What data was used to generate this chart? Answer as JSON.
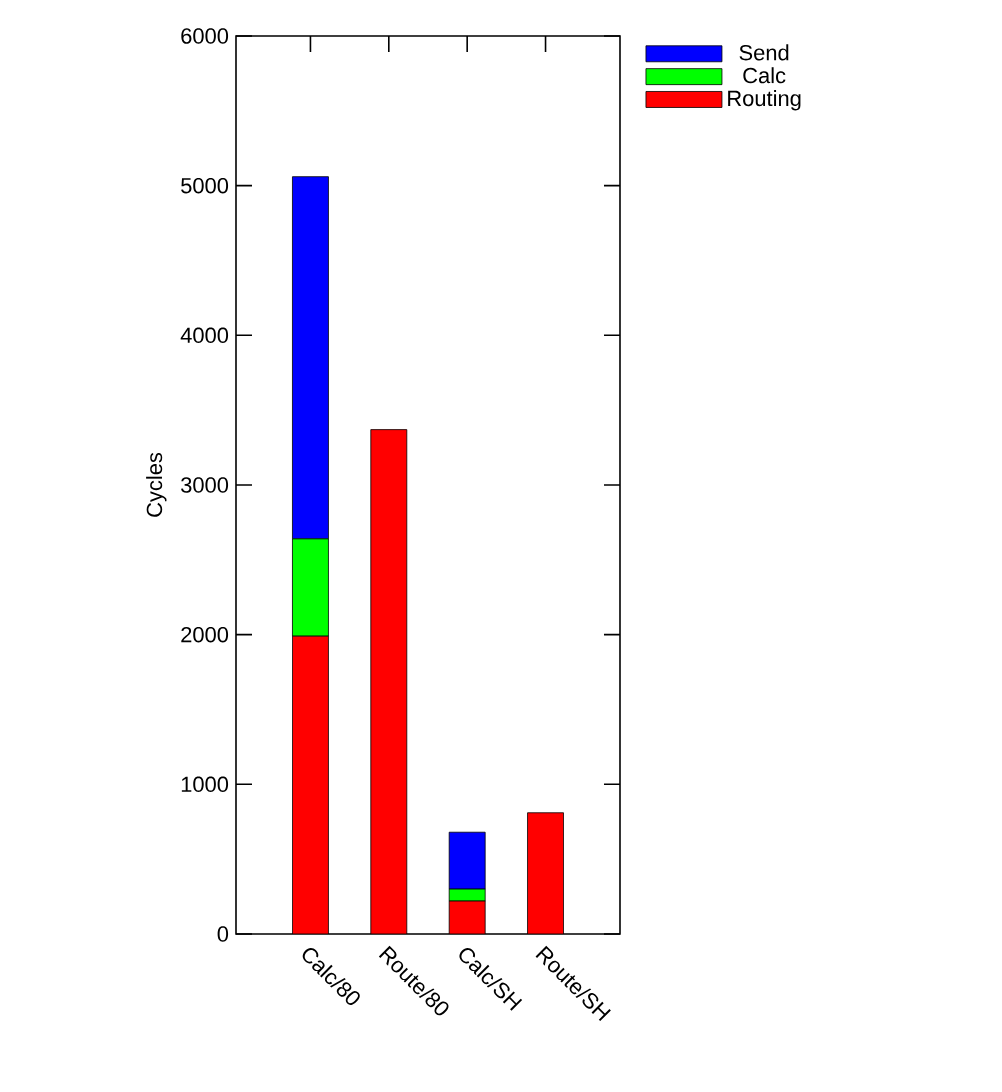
{
  "chart_data": {
    "type": "bar",
    "stacked": true,
    "ylabel": "Cycles",
    "categories": [
      "Calc/80",
      "Route/80",
      "Calc/SH",
      "Route/SH"
    ],
    "series": [
      {
        "name": "Routing",
        "color": "#ff0000",
        "values": [
          1990,
          3370,
          220,
          810
        ]
      },
      {
        "name": "Calc",
        "color": "#00ff00",
        "values": [
          650,
          0,
          80,
          0
        ]
      },
      {
        "name": "Send",
        "color": "#0000ff",
        "values": [
          2420,
          0,
          380,
          0
        ]
      }
    ],
    "ylim": [
      0,
      6000
    ],
    "yticks": [
      0,
      1000,
      2000,
      3000,
      4000,
      5000,
      6000
    ],
    "grid": false,
    "legend": "top right"
  }
}
